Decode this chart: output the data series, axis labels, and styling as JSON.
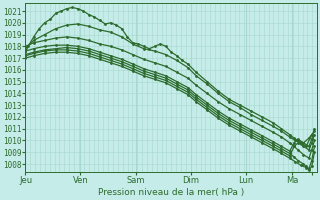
{
  "title": "Pression niveau de la mer( hPa )",
  "ylabel_values": [
    1008,
    1009,
    1010,
    1011,
    1012,
    1013,
    1014,
    1015,
    1016,
    1017,
    1018,
    1019,
    1020,
    1021
  ],
  "ylim": [
    1007.3,
    1021.7
  ],
  "xlim": [
    0,
    5.3
  ],
  "xtick_positions": [
    0.0,
    1.0,
    2.0,
    3.0,
    4.0,
    4.85,
    5.2
  ],
  "xtick_labels": [
    "Jeu",
    "Ven",
    "Sam",
    "Dim",
    "Lun",
    "Ma",
    ""
  ],
  "bg_color": "#c5ece8",
  "grid_color": "#a8d8d0",
  "line_color": "#2d6b2d",
  "line_width": 0.9,
  "markersize": 2.0,
  "lines": [
    [
      0.0,
      1017.5,
      0.05,
      1018.0,
      0.15,
      1018.8,
      0.25,
      1019.5,
      0.35,
      1020.0,
      0.45,
      1020.3,
      0.55,
      1020.8,
      0.65,
      1021.0,
      0.75,
      1021.2,
      0.85,
      1021.3,
      0.95,
      1021.2,
      1.05,
      1021.0,
      1.15,
      1020.7,
      1.25,
      1020.5,
      1.35,
      1020.2,
      1.45,
      1019.9,
      1.55,
      1020.0,
      1.65,
      1019.8,
      1.75,
      1019.5,
      1.85,
      1018.8,
      1.95,
      1018.3,
      2.05,
      1018.2,
      2.15,
      1018.0,
      2.25,
      1017.8,
      2.35,
      1018.0,
      2.45,
      1018.2,
      2.55,
      1018.0,
      2.65,
      1017.5,
      2.75,
      1017.2,
      2.85,
      1016.8,
      2.95,
      1016.5,
      3.1,
      1015.8,
      3.3,
      1015.0,
      3.5,
      1014.2,
      3.7,
      1013.5,
      3.9,
      1013.0,
      4.1,
      1012.5,
      4.3,
      1012.0,
      4.5,
      1011.5,
      4.65,
      1011.0,
      4.8,
      1010.5,
      4.88,
      1010.2,
      4.95,
      1010.0,
      5.05,
      1009.8,
      5.15,
      1010.2,
      5.25,
      1010.8
    ],
    [
      0.0,
      1017.8,
      0.15,
      1018.5,
      0.35,
      1019.0,
      0.55,
      1019.5,
      0.75,
      1019.8,
      0.95,
      1019.9,
      1.15,
      1019.7,
      1.35,
      1019.4,
      1.55,
      1019.2,
      1.75,
      1018.8,
      1.95,
      1018.2,
      2.15,
      1017.8,
      2.35,
      1017.6,
      2.55,
      1017.3,
      2.75,
      1016.8,
      2.95,
      1016.2,
      3.1,
      1015.5,
      3.3,
      1014.8,
      3.5,
      1014.0,
      3.7,
      1013.3,
      3.9,
      1012.8,
      4.1,
      1012.2,
      4.3,
      1011.7,
      4.5,
      1011.2,
      4.65,
      1010.8,
      4.8,
      1010.3,
      4.9,
      1010.0,
      5.0,
      1009.8,
      5.1,
      1009.5,
      5.2,
      1010.5
    ],
    [
      0.0,
      1018.0,
      0.15,
      1018.3,
      0.35,
      1018.5,
      0.55,
      1018.7,
      0.75,
      1018.8,
      0.95,
      1018.7,
      1.15,
      1018.5,
      1.35,
      1018.2,
      1.55,
      1018.0,
      1.75,
      1017.7,
      1.95,
      1017.3,
      2.15,
      1016.9,
      2.35,
      1016.6,
      2.55,
      1016.3,
      2.75,
      1015.8,
      2.95,
      1015.3,
      3.1,
      1014.7,
      3.3,
      1014.0,
      3.5,
      1013.3,
      3.7,
      1012.7,
      3.9,
      1012.2,
      4.1,
      1011.7,
      4.3,
      1011.2,
      4.5,
      1010.7,
      4.65,
      1010.3,
      4.8,
      1009.8,
      4.88,
      1009.5,
      4.95,
      1009.2,
      5.05,
      1008.8,
      5.15,
      1008.5,
      5.2,
      1009.2,
      5.25,
      1010.0
    ],
    [
      0.0,
      1017.3,
      0.15,
      1017.5,
      0.35,
      1017.7,
      0.55,
      1017.8,
      0.75,
      1017.9,
      0.95,
      1017.8,
      1.15,
      1017.6,
      1.35,
      1017.3,
      1.55,
      1017.0,
      1.75,
      1016.7,
      1.95,
      1016.3,
      2.15,
      1015.9,
      2.35,
      1015.6,
      2.55,
      1015.3,
      2.75,
      1014.8,
      2.95,
      1014.3,
      3.1,
      1013.7,
      3.3,
      1013.0,
      3.5,
      1012.3,
      3.7,
      1011.7,
      3.9,
      1011.2,
      4.1,
      1010.7,
      4.3,
      1010.2,
      4.5,
      1009.7,
      4.65,
      1009.3,
      4.8,
      1008.9,
      4.88,
      1008.6,
      4.95,
      1008.3,
      5.05,
      1008.0,
      5.1,
      1007.8,
      5.15,
      1007.6,
      5.2,
      1008.3,
      5.25,
      1009.5
    ],
    [
      0.0,
      1017.0,
      0.15,
      1017.2,
      0.35,
      1017.4,
      0.55,
      1017.5,
      0.75,
      1017.5,
      0.95,
      1017.4,
      1.15,
      1017.2,
      1.35,
      1016.9,
      1.55,
      1016.6,
      1.75,
      1016.3,
      1.95,
      1015.9,
      2.15,
      1015.5,
      2.35,
      1015.2,
      2.55,
      1014.9,
      2.75,
      1014.4,
      2.95,
      1013.9,
      3.1,
      1013.3,
      3.3,
      1012.6,
      3.5,
      1011.9,
      3.7,
      1011.3,
      3.9,
      1010.8,
      4.1,
      1010.3,
      4.3,
      1009.8,
      4.5,
      1009.3,
      4.65,
      1008.9,
      4.8,
      1008.5,
      4.9,
      1008.2,
      5.0,
      1007.9,
      5.1,
      1007.7,
      5.15,
      1007.5,
      5.2,
      1007.8,
      5.25,
      1009.0
    ],
    [
      0.0,
      1017.2,
      0.15,
      1017.4,
      0.35,
      1017.6,
      0.55,
      1017.7,
      0.75,
      1017.7,
      0.95,
      1017.6,
      1.15,
      1017.4,
      1.35,
      1017.1,
      1.55,
      1016.8,
      1.75,
      1016.5,
      1.95,
      1016.1,
      2.15,
      1015.7,
      2.35,
      1015.4,
      2.55,
      1015.1,
      2.75,
      1014.6,
      2.95,
      1014.1,
      3.1,
      1013.5,
      3.3,
      1012.8,
      3.5,
      1012.1,
      3.7,
      1011.5,
      3.9,
      1011.0,
      4.1,
      1010.5,
      4.3,
      1010.0,
      4.5,
      1009.5,
      4.65,
      1009.1,
      4.8,
      1008.7,
      4.88,
      1009.5,
      4.95,
      1009.8,
      5.05,
      1009.5,
      5.15,
      1009.2,
      5.2,
      1009.8,
      5.25,
      1010.5
    ],
    [
      0.0,
      1017.6,
      0.15,
      1017.8,
      0.35,
      1018.0,
      0.55,
      1018.1,
      0.75,
      1018.1,
      0.95,
      1018.0,
      1.15,
      1017.8,
      1.35,
      1017.5,
      1.55,
      1017.2,
      1.75,
      1016.9,
      1.95,
      1016.5,
      2.15,
      1016.1,
      2.35,
      1015.8,
      2.55,
      1015.5,
      2.75,
      1015.0,
      2.95,
      1014.5,
      3.1,
      1013.9,
      3.3,
      1013.2,
      3.5,
      1012.5,
      3.7,
      1011.9,
      3.9,
      1011.4,
      4.1,
      1010.9,
      4.3,
      1010.4,
      4.5,
      1009.9,
      4.65,
      1009.5,
      4.8,
      1009.1,
      4.88,
      1009.8,
      4.95,
      1010.1,
      5.05,
      1009.8,
      5.15,
      1009.5,
      5.2,
      1010.1,
      5.25,
      1011.0
    ]
  ]
}
